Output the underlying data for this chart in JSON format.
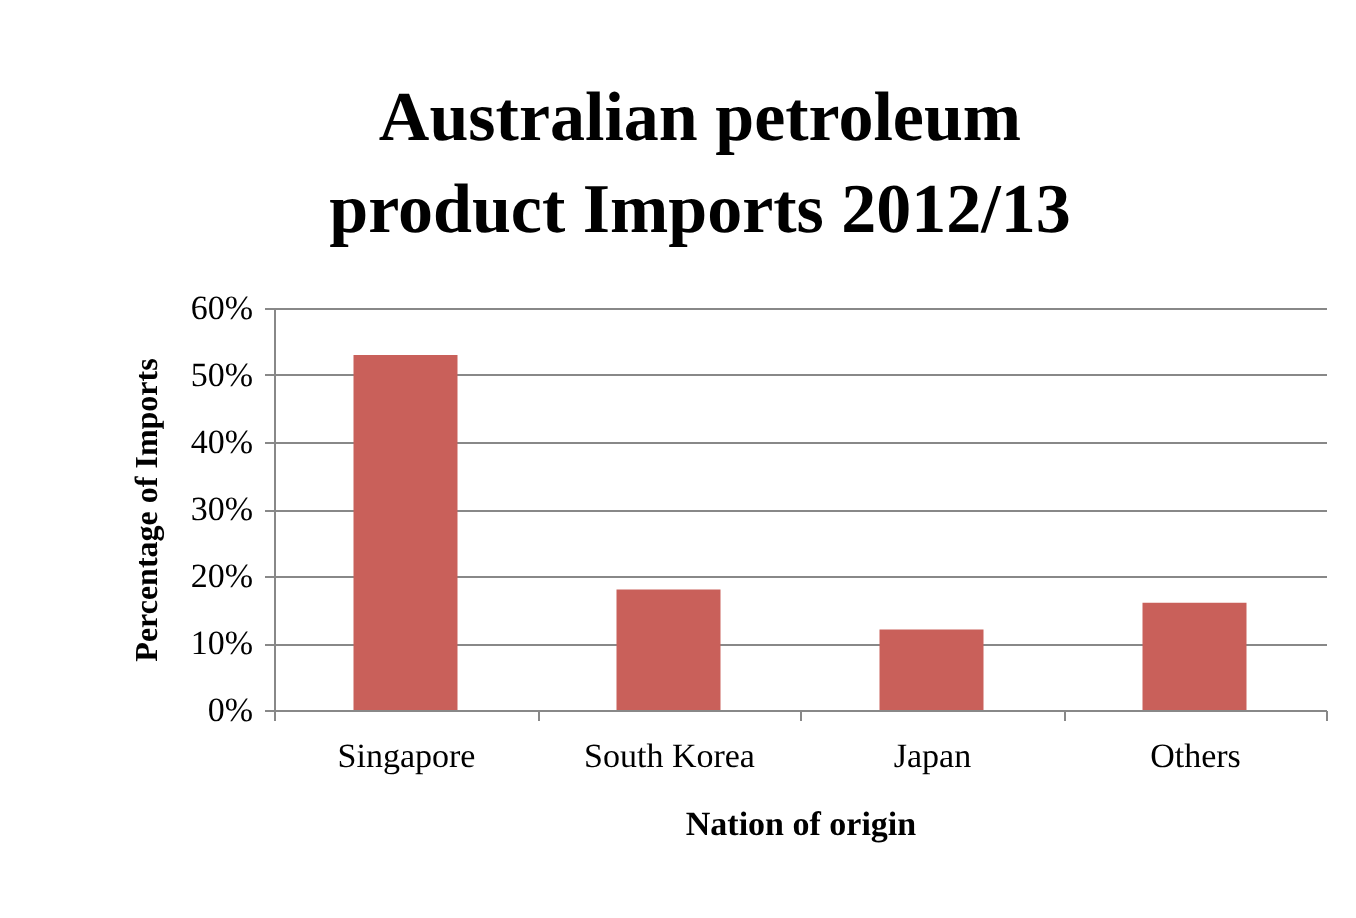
{
  "chart_data": {
    "type": "bar",
    "title": "Australian petroleum product Imports 2012/13",
    "xlabel": "Nation of origin",
    "ylabel": "Percentage of Imports",
    "categories": [
      "Singapore",
      "South Korea",
      "Japan",
      "Others"
    ],
    "values": [
      53,
      18,
      12,
      16
    ],
    "color": "#c9605a",
    "ylim": [
      0,
      60
    ],
    "yticks": [
      {
        "value": 0,
        "label": "0%"
      },
      {
        "value": 10,
        "label": "10%"
      },
      {
        "value": 20,
        "label": "20%"
      },
      {
        "value": 30,
        "label": "30%"
      },
      {
        "value": 40,
        "label": "40%"
      },
      {
        "value": 50,
        "label": "50%"
      },
      {
        "value": 60,
        "label": "60%"
      }
    ],
    "grid": "y"
  }
}
